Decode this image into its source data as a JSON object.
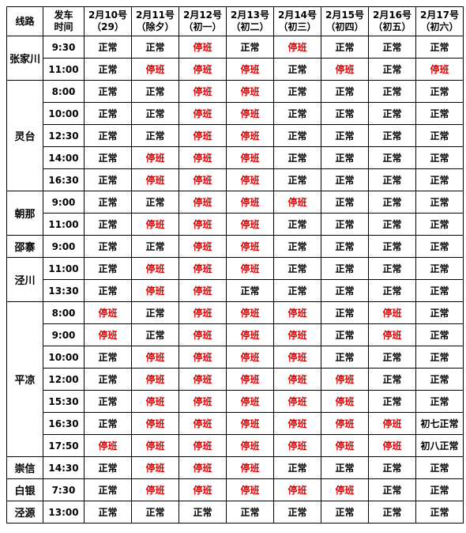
{
  "header": {
    "route": "线路",
    "time_l1": "发车",
    "time_l2": "时间",
    "days": [
      {
        "date": "2月10号",
        "sub": "（29）"
      },
      {
        "date": "2月11号",
        "sub": "（除夕）"
      },
      {
        "date": "2月12号",
        "sub": "（初一）"
      },
      {
        "date": "2月13号",
        "sub": "（初二）"
      },
      {
        "date": "2月14号",
        "sub": "（初三）"
      },
      {
        "date": "2月15号",
        "sub": "（初四）"
      },
      {
        "date": "2月16号",
        "sub": "（初五）"
      },
      {
        "date": "2月17号",
        "sub": "（初六）"
      }
    ]
  },
  "status_colors": {
    "正常": "#000000",
    "停班": "#e00000"
  },
  "routes": [
    {
      "name": "张家川",
      "rows": [
        {
          "time": "9:30",
          "cells": [
            "正常",
            "正常",
            "停班",
            "正常",
            "停班",
            "正常",
            "正常",
            "正常"
          ]
        },
        {
          "time": "11:00",
          "cells": [
            "正常",
            "停班",
            "停班",
            "停班",
            "正常",
            "停班",
            "正常",
            "停班"
          ]
        }
      ]
    },
    {
      "name": "灵台",
      "rows": [
        {
          "time": "8:00",
          "cells": [
            "正常",
            "正常",
            "停班",
            "停班",
            "正常",
            "正常",
            "正常",
            "正常"
          ]
        },
        {
          "time": "10:00",
          "cells": [
            "正常",
            "正常",
            "停班",
            "停班",
            "正常",
            "正常",
            "正常",
            "正常"
          ]
        },
        {
          "time": "12:30",
          "cells": [
            "正常",
            "正常",
            "停班",
            "停班",
            "正常",
            "正常",
            "正常",
            "正常"
          ]
        },
        {
          "time": "14:00",
          "cells": [
            "正常",
            "停班",
            "停班",
            "停班",
            "正常",
            "正常",
            "正常",
            "正常"
          ]
        },
        {
          "time": "16:30",
          "cells": [
            "正常",
            "停班",
            "停班",
            "停班",
            "正常",
            "正常",
            "正常",
            "正常"
          ]
        }
      ]
    },
    {
      "name": "朝那",
      "rows": [
        {
          "time": "9:00",
          "cells": [
            "正常",
            "正常",
            "停班",
            "停班",
            "停班",
            "正常",
            "正常",
            "正常"
          ]
        },
        {
          "time": "11:00",
          "cells": [
            "正常",
            "停班",
            "停班",
            "停班",
            "正常",
            "正常",
            "正常",
            "正常"
          ]
        }
      ]
    },
    {
      "name": "邵寨",
      "rows": [
        {
          "time": "9:00",
          "cells": [
            "正常",
            "正常",
            "停班",
            "停班",
            "正常",
            "正常",
            "正常",
            "正常"
          ]
        }
      ]
    },
    {
      "name": "泾川",
      "rows": [
        {
          "time": "11:00",
          "cells": [
            "正常",
            "停班",
            "停班",
            "停班",
            "正常",
            "正常",
            "正常",
            "正常"
          ]
        },
        {
          "time": "13:30",
          "cells": [
            "正常",
            "停班",
            "停班",
            "正常",
            "正常",
            "正常",
            "正常",
            "正常"
          ]
        }
      ]
    },
    {
      "name": "平凉",
      "rows": [
        {
          "time": "8:00",
          "cells": [
            "停班",
            "正常",
            "停班",
            "停班",
            "停班",
            "正常",
            "停班",
            "正常"
          ]
        },
        {
          "time": "9:00",
          "cells": [
            "停班",
            "正常",
            "停班",
            "停班",
            "停班",
            "正常",
            "停班",
            "正常"
          ]
        },
        {
          "time": "10:00",
          "cells": [
            "正常",
            "停班",
            "停班",
            "停班",
            "停班",
            "正常",
            "正常",
            "正常"
          ]
        },
        {
          "time": "12:00",
          "cells": [
            "正常",
            "停班",
            "停班",
            "停班",
            "停班",
            "停班",
            "正常",
            "正常"
          ]
        },
        {
          "time": "15:30",
          "cells": [
            "正常",
            "停班",
            "停班",
            "停班",
            "停班",
            "停班",
            "正常",
            "正常"
          ]
        },
        {
          "time": "16:30",
          "cells": [
            "正常",
            "停班",
            "停班",
            "停班",
            "停班",
            "停班",
            "停班",
            "初七正常"
          ]
        },
        {
          "time": "17:50",
          "cells": [
            "停班",
            "停班",
            "停班",
            "停班",
            "停班",
            "停班",
            "停班",
            "初八正常"
          ]
        }
      ]
    },
    {
      "name": "崇信",
      "rows": [
        {
          "time": "14:30",
          "cells": [
            "正常",
            "停班",
            "停班",
            "停班",
            "正常",
            "正常",
            "正常",
            "正常"
          ]
        }
      ]
    },
    {
      "name": "白银",
      "rows": [
        {
          "time": "7:30",
          "cells": [
            "正常",
            "停班",
            "停班",
            "停班",
            "停班",
            "停班",
            "正常",
            "正常"
          ]
        }
      ]
    },
    {
      "name": "泾源",
      "rows": [
        {
          "time": "13:00",
          "cells": [
            "正常",
            "正常",
            "正常",
            "正常",
            "正常",
            "正常",
            "正常",
            "正常"
          ]
        }
      ]
    }
  ]
}
